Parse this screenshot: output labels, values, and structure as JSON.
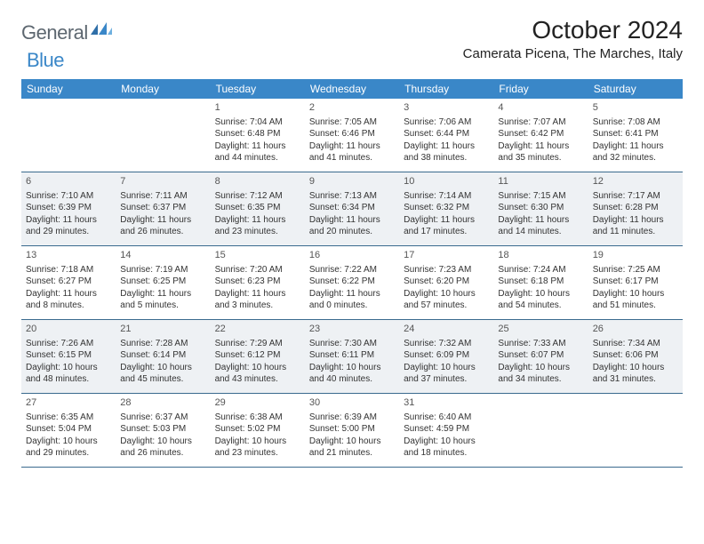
{
  "brand": {
    "part1": "General",
    "part2": "Blue"
  },
  "title": "October 2024",
  "location": "Camerata Picena, The Marches, Italy",
  "colors": {
    "header_bg": "#3a87c8",
    "header_text": "#ffffff",
    "row_border": "#3a6a8e",
    "shade_bg": "#eef1f4",
    "body_text": "#333333",
    "logo_gray": "#5d6770",
    "logo_blue": "#3a87c8"
  },
  "weekdays": [
    "Sunday",
    "Monday",
    "Tuesday",
    "Wednesday",
    "Thursday",
    "Friday",
    "Saturday"
  ],
  "weeks": [
    {
      "shaded": false,
      "days": [
        {
          "n": "",
          "sr": "",
          "ss": "",
          "dl": ""
        },
        {
          "n": "",
          "sr": "",
          "ss": "",
          "dl": ""
        },
        {
          "n": "1",
          "sr": "Sunrise: 7:04 AM",
          "ss": "Sunset: 6:48 PM",
          "dl": "Daylight: 11 hours and 44 minutes."
        },
        {
          "n": "2",
          "sr": "Sunrise: 7:05 AM",
          "ss": "Sunset: 6:46 PM",
          "dl": "Daylight: 11 hours and 41 minutes."
        },
        {
          "n": "3",
          "sr": "Sunrise: 7:06 AM",
          "ss": "Sunset: 6:44 PM",
          "dl": "Daylight: 11 hours and 38 minutes."
        },
        {
          "n": "4",
          "sr": "Sunrise: 7:07 AM",
          "ss": "Sunset: 6:42 PM",
          "dl": "Daylight: 11 hours and 35 minutes."
        },
        {
          "n": "5",
          "sr": "Sunrise: 7:08 AM",
          "ss": "Sunset: 6:41 PM",
          "dl": "Daylight: 11 hours and 32 minutes."
        }
      ]
    },
    {
      "shaded": true,
      "days": [
        {
          "n": "6",
          "sr": "Sunrise: 7:10 AM",
          "ss": "Sunset: 6:39 PM",
          "dl": "Daylight: 11 hours and 29 minutes."
        },
        {
          "n": "7",
          "sr": "Sunrise: 7:11 AM",
          "ss": "Sunset: 6:37 PM",
          "dl": "Daylight: 11 hours and 26 minutes."
        },
        {
          "n": "8",
          "sr": "Sunrise: 7:12 AM",
          "ss": "Sunset: 6:35 PM",
          "dl": "Daylight: 11 hours and 23 minutes."
        },
        {
          "n": "9",
          "sr": "Sunrise: 7:13 AM",
          "ss": "Sunset: 6:34 PM",
          "dl": "Daylight: 11 hours and 20 minutes."
        },
        {
          "n": "10",
          "sr": "Sunrise: 7:14 AM",
          "ss": "Sunset: 6:32 PM",
          "dl": "Daylight: 11 hours and 17 minutes."
        },
        {
          "n": "11",
          "sr": "Sunrise: 7:15 AM",
          "ss": "Sunset: 6:30 PM",
          "dl": "Daylight: 11 hours and 14 minutes."
        },
        {
          "n": "12",
          "sr": "Sunrise: 7:17 AM",
          "ss": "Sunset: 6:28 PM",
          "dl": "Daylight: 11 hours and 11 minutes."
        }
      ]
    },
    {
      "shaded": false,
      "days": [
        {
          "n": "13",
          "sr": "Sunrise: 7:18 AM",
          "ss": "Sunset: 6:27 PM",
          "dl": "Daylight: 11 hours and 8 minutes."
        },
        {
          "n": "14",
          "sr": "Sunrise: 7:19 AM",
          "ss": "Sunset: 6:25 PM",
          "dl": "Daylight: 11 hours and 5 minutes."
        },
        {
          "n": "15",
          "sr": "Sunrise: 7:20 AM",
          "ss": "Sunset: 6:23 PM",
          "dl": "Daylight: 11 hours and 3 minutes."
        },
        {
          "n": "16",
          "sr": "Sunrise: 7:22 AM",
          "ss": "Sunset: 6:22 PM",
          "dl": "Daylight: 11 hours and 0 minutes."
        },
        {
          "n": "17",
          "sr": "Sunrise: 7:23 AM",
          "ss": "Sunset: 6:20 PM",
          "dl": "Daylight: 10 hours and 57 minutes."
        },
        {
          "n": "18",
          "sr": "Sunrise: 7:24 AM",
          "ss": "Sunset: 6:18 PM",
          "dl": "Daylight: 10 hours and 54 minutes."
        },
        {
          "n": "19",
          "sr": "Sunrise: 7:25 AM",
          "ss": "Sunset: 6:17 PM",
          "dl": "Daylight: 10 hours and 51 minutes."
        }
      ]
    },
    {
      "shaded": true,
      "days": [
        {
          "n": "20",
          "sr": "Sunrise: 7:26 AM",
          "ss": "Sunset: 6:15 PM",
          "dl": "Daylight: 10 hours and 48 minutes."
        },
        {
          "n": "21",
          "sr": "Sunrise: 7:28 AM",
          "ss": "Sunset: 6:14 PM",
          "dl": "Daylight: 10 hours and 45 minutes."
        },
        {
          "n": "22",
          "sr": "Sunrise: 7:29 AM",
          "ss": "Sunset: 6:12 PM",
          "dl": "Daylight: 10 hours and 43 minutes."
        },
        {
          "n": "23",
          "sr": "Sunrise: 7:30 AM",
          "ss": "Sunset: 6:11 PM",
          "dl": "Daylight: 10 hours and 40 minutes."
        },
        {
          "n": "24",
          "sr": "Sunrise: 7:32 AM",
          "ss": "Sunset: 6:09 PM",
          "dl": "Daylight: 10 hours and 37 minutes."
        },
        {
          "n": "25",
          "sr": "Sunrise: 7:33 AM",
          "ss": "Sunset: 6:07 PM",
          "dl": "Daylight: 10 hours and 34 minutes."
        },
        {
          "n": "26",
          "sr": "Sunrise: 7:34 AM",
          "ss": "Sunset: 6:06 PM",
          "dl": "Daylight: 10 hours and 31 minutes."
        }
      ]
    },
    {
      "shaded": false,
      "days": [
        {
          "n": "27",
          "sr": "Sunrise: 6:35 AM",
          "ss": "Sunset: 5:04 PM",
          "dl": "Daylight: 10 hours and 29 minutes."
        },
        {
          "n": "28",
          "sr": "Sunrise: 6:37 AM",
          "ss": "Sunset: 5:03 PM",
          "dl": "Daylight: 10 hours and 26 minutes."
        },
        {
          "n": "29",
          "sr": "Sunrise: 6:38 AM",
          "ss": "Sunset: 5:02 PM",
          "dl": "Daylight: 10 hours and 23 minutes."
        },
        {
          "n": "30",
          "sr": "Sunrise: 6:39 AM",
          "ss": "Sunset: 5:00 PM",
          "dl": "Daylight: 10 hours and 21 minutes."
        },
        {
          "n": "31",
          "sr": "Sunrise: 6:40 AM",
          "ss": "Sunset: 4:59 PM",
          "dl": "Daylight: 10 hours and 18 minutes."
        },
        {
          "n": "",
          "sr": "",
          "ss": "",
          "dl": ""
        },
        {
          "n": "",
          "sr": "",
          "ss": "",
          "dl": ""
        }
      ]
    }
  ]
}
